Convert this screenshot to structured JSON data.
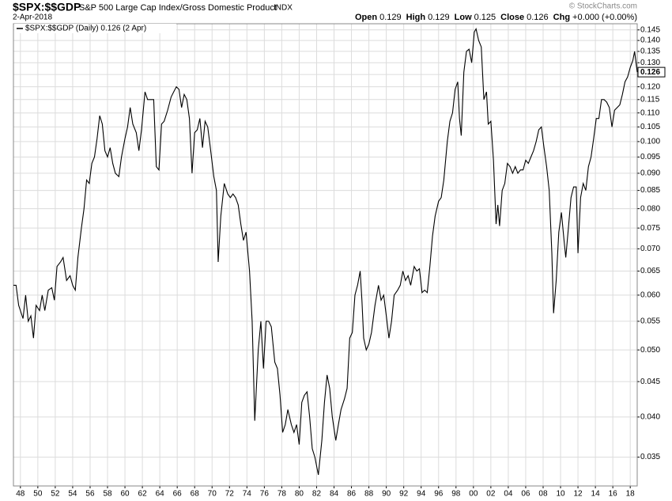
{
  "chart_data": {
    "type": "line",
    "title": "$SPX:$$GDP",
    "subtitle": "S&P 500 Large Cap Index/Gross Domestic Product",
    "exchange": "INDX",
    "date": "2-Apr-2018",
    "credit": "© StockCharts.com",
    "quote": {
      "open_label": "Open",
      "open": 0.129,
      "high_label": "High",
      "high": 0.129,
      "low_label": "Low",
      "low": 0.125,
      "close_label": "Close",
      "close": 0.126,
      "chg_label": "Chg",
      "chg": "+0.000 (+0.00%)"
    },
    "log_scale": true,
    "grid": true,
    "legend": "top-left",
    "xlim": [
      1947.2,
      2018.8
    ],
    "ylim": [
      0.0318,
      0.148
    ],
    "xticks": [
      {
        "value": 1948,
        "label": "48"
      },
      {
        "value": 1950,
        "label": "50"
      },
      {
        "value": 1952,
        "label": "52"
      },
      {
        "value": 1954,
        "label": "54"
      },
      {
        "value": 1956,
        "label": "56"
      },
      {
        "value": 1958,
        "label": "58"
      },
      {
        "value": 1960,
        "label": "60"
      },
      {
        "value": 1962,
        "label": "62"
      },
      {
        "value": 1964,
        "label": "64"
      },
      {
        "value": 1966,
        "label": "66"
      },
      {
        "value": 1968,
        "label": "68"
      },
      {
        "value": 1970,
        "label": "70"
      },
      {
        "value": 1972,
        "label": "72"
      },
      {
        "value": 1974,
        "label": "74"
      },
      {
        "value": 1976,
        "label": "76"
      },
      {
        "value": 1978,
        "label": "78"
      },
      {
        "value": 1980,
        "label": "80"
      },
      {
        "value": 1982,
        "label": "82"
      },
      {
        "value": 1984,
        "label": "84"
      },
      {
        "value": 1986,
        "label": "86"
      },
      {
        "value": 1988,
        "label": "88"
      },
      {
        "value": 1990,
        "label": "90"
      },
      {
        "value": 1992,
        "label": "92"
      },
      {
        "value": 1994,
        "label": "94"
      },
      {
        "value": 1996,
        "label": "96"
      },
      {
        "value": 1998,
        "label": "98"
      },
      {
        "value": 2000,
        "label": "00"
      },
      {
        "value": 2002,
        "label": "02"
      },
      {
        "value": 2004,
        "label": "04"
      },
      {
        "value": 2006,
        "label": "06"
      },
      {
        "value": 2008,
        "label": "08"
      },
      {
        "value": 2010,
        "label": "10"
      },
      {
        "value": 2012,
        "label": "12"
      },
      {
        "value": 2014,
        "label": "14"
      },
      {
        "value": 2016,
        "label": "16"
      },
      {
        "value": 2018,
        "label": "18"
      }
    ],
    "yticks": [
      0.035,
      {
        "value": 0.04,
        "label": "0.040"
      },
      0.045,
      {
        "value": 0.05,
        "label": "0.050"
      },
      0.055,
      {
        "value": 0.06,
        "label": "0.060"
      },
      0.065,
      {
        "value": 0.07,
        "label": "0.070"
      },
      0.075,
      {
        "value": 0.08,
        "label": "0.080"
      },
      0.085,
      {
        "value": 0.09,
        "label": "0.090"
      },
      0.095,
      {
        "value": 0.1,
        "label": "0.100"
      },
      0.105,
      {
        "value": 0.11,
        "label": "0.110"
      },
      0.115,
      {
        "value": 0.12,
        "label": "0.120"
      },
      0.125,
      {
        "value": 0.13,
        "label": "0.130"
      },
      0.135,
      {
        "value": 0.14,
        "label": "0.140"
      },
      0.145
    ],
    "series": [
      {
        "name": "$SPX:$$GDP (Daily) 0.126 (2 Apr)",
        "color": "#000000",
        "x": [
          1947.2,
          1947.5,
          1947.8,
          1948.3,
          1948.6,
          1948.9,
          1949.2,
          1949.5,
          1949.8,
          1950.2,
          1950.5,
          1950.8,
          1951.2,
          1951.6,
          1951.9,
          1952.2,
          1952.6,
          1952.9,
          1953.3,
          1953.7,
          1954.0,
          1954.3,
          1954.6,
          1955.0,
          1955.3,
          1955.6,
          1955.9,
          1956.2,
          1956.5,
          1956.8,
          1957.1,
          1957.4,
          1957.7,
          1958.0,
          1958.3,
          1958.6,
          1958.9,
          1959.3,
          1959.6,
          1960.0,
          1960.3,
          1960.6,
          1960.9,
          1961.3,
          1961.6,
          1961.9,
          1962.3,
          1962.6,
          1963.0,
          1963.3,
          1963.6,
          1963.9,
          1964.2,
          1964.5,
          1964.9,
          1965.3,
          1965.6,
          1965.9,
          1966.2,
          1966.5,
          1966.8,
          1967.1,
          1967.4,
          1967.7,
          1968.0,
          1968.3,
          1968.6,
          1968.9,
          1969.2,
          1969.5,
          1969.8,
          1970.2,
          1970.5,
          1970.7,
          1971.0,
          1971.4,
          1971.8,
          1972.1,
          1972.4,
          1972.7,
          1973.0,
          1973.3,
          1973.6,
          1973.9,
          1974.3,
          1974.6,
          1974.9,
          1975.3,
          1975.6,
          1975.9,
          1976.2,
          1976.5,
          1976.8,
          1977.2,
          1977.5,
          1977.8,
          1978.1,
          1978.4,
          1978.7,
          1979.1,
          1979.4,
          1979.7,
          1980.0,
          1980.3,
          1980.6,
          1980.9,
          1981.2,
          1981.5,
          1981.8,
          1982.2,
          1982.6,
          1982.9,
          1983.2,
          1983.5,
          1983.8,
          1984.2,
          1984.5,
          1984.8,
          1985.2,
          1985.5,
          1985.8,
          1986.1,
          1986.4,
          1986.7,
          1987.0,
          1987.2,
          1987.4,
          1987.7,
          1988.0,
          1988.3,
          1988.7,
          1989.1,
          1989.4,
          1989.7,
          1990.0,
          1990.3,
          1990.6,
          1990.9,
          1991.3,
          1991.6,
          1991.9,
          1992.2,
          1992.5,
          1992.8,
          1993.2,
          1993.5,
          1993.8,
          1994.1,
          1994.4,
          1994.7,
          1995.0,
          1995.3,
          1995.6,
          1996.0,
          1996.3,
          1996.6,
          1997.0,
          1997.3,
          1997.6,
          1997.9,
          1998.2,
          1998.4,
          1998.6,
          1998.9,
          1999.2,
          1999.5,
          1999.8,
          2000.1,
          2000.3,
          2000.6,
          2000.9,
          2001.2,
          2001.5,
          2001.7,
          2002.0,
          2002.3,
          2002.6,
          2002.8,
          2003.0,
          2003.3,
          2003.6,
          2003.9,
          2004.2,
          2004.5,
          2004.8,
          2005.1,
          2005.4,
          2005.7,
          2006.0,
          2006.3,
          2006.6,
          2006.9,
          2007.2,
          2007.5,
          2007.8,
          2008.1,
          2008.4,
          2008.7,
          2009.0,
          2009.2,
          2009.5,
          2009.8,
          2010.1,
          2010.4,
          2010.6,
          2010.9,
          2011.2,
          2011.5,
          2011.8,
          2012.0,
          2012.3,
          2012.6,
          2012.9,
          2013.2,
          2013.5,
          2013.8,
          2014.1,
          2014.4,
          2014.7,
          2015.0,
          2015.3,
          2015.6,
          2015.9,
          2016.2,
          2016.5,
          2016.8,
          2017.1,
          2017.4,
          2017.7,
          2018.0,
          2018.3,
          2018.5,
          2018.8
        ],
        "values": [
          0.062,
          0.062,
          0.058,
          0.0555,
          0.06,
          0.055,
          0.056,
          0.052,
          0.058,
          0.057,
          0.06,
          0.057,
          0.061,
          0.0615,
          0.059,
          0.066,
          0.067,
          0.068,
          0.063,
          0.064,
          0.062,
          0.061,
          0.068,
          0.075,
          0.08,
          0.088,
          0.087,
          0.093,
          0.095,
          0.101,
          0.109,
          0.106,
          0.097,
          0.095,
          0.098,
          0.093,
          0.09,
          0.089,
          0.095,
          0.101,
          0.105,
          0.112,
          0.106,
          0.103,
          0.097,
          0.104,
          0.118,
          0.115,
          0.115,
          0.115,
          0.092,
          0.091,
          0.106,
          0.107,
          0.111,
          0.116,
          0.118,
          0.12,
          0.119,
          0.112,
          0.117,
          0.115,
          0.108,
          0.09,
          0.103,
          0.104,
          0.108,
          0.098,
          0.107,
          0.105,
          0.098,
          0.089,
          0.085,
          0.067,
          0.078,
          0.087,
          0.084,
          0.083,
          0.084,
          0.083,
          0.081,
          0.076,
          0.072,
          0.074,
          0.065,
          0.055,
          0.0395,
          0.05,
          0.055,
          0.047,
          0.055,
          0.055,
          0.054,
          0.048,
          0.047,
          0.043,
          0.038,
          0.039,
          0.041,
          0.039,
          0.038,
          0.039,
          0.0365,
          0.042,
          0.043,
          0.0435,
          0.04,
          0.036,
          0.035,
          0.033,
          0.037,
          0.042,
          0.046,
          0.044,
          0.04,
          0.037,
          0.039,
          0.041,
          0.0425,
          0.044,
          0.052,
          0.053,
          0.06,
          0.062,
          0.065,
          0.059,
          0.052,
          0.05,
          0.051,
          0.053,
          0.058,
          0.062,
          0.059,
          0.06,
          0.056,
          0.052,
          0.055,
          0.06,
          0.061,
          0.062,
          0.065,
          0.063,
          0.064,
          0.062,
          0.066,
          0.065,
          0.0655,
          0.0605,
          0.061,
          0.0605,
          0.066,
          0.073,
          0.078,
          0.082,
          0.083,
          0.088,
          0.1,
          0.107,
          0.11,
          0.119,
          0.122,
          0.108,
          0.102,
          0.126,
          0.135,
          0.136,
          0.13,
          0.144,
          0.1455,
          0.14,
          0.137,
          0.115,
          0.118,
          0.106,
          0.107,
          0.094,
          0.076,
          0.081,
          0.0755,
          0.085,
          0.087,
          0.093,
          0.092,
          0.09,
          0.092,
          0.09,
          0.091,
          0.091,
          0.094,
          0.093,
          0.095,
          0.097,
          0.1,
          0.104,
          0.105,
          0.098,
          0.092,
          0.085,
          0.069,
          0.0565,
          0.063,
          0.074,
          0.079,
          0.072,
          0.068,
          0.075,
          0.083,
          0.086,
          0.086,
          0.069,
          0.083,
          0.087,
          0.085,
          0.092,
          0.095,
          0.101,
          0.108,
          0.108,
          0.115,
          0.115,
          0.114,
          0.112,
          0.105,
          0.111,
          0.112,
          0.113,
          0.117,
          0.122,
          0.124,
          0.128,
          0.131,
          0.135,
          0.126
        ]
      }
    ]
  }
}
